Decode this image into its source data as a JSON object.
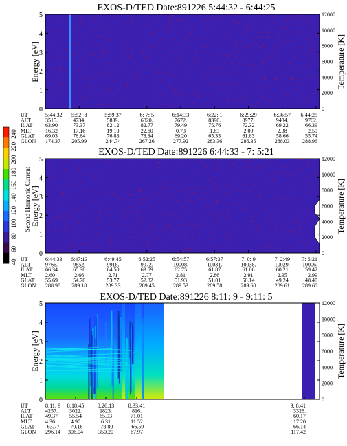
{
  "colors": {
    "background": "#3a1fb0",
    "noise": "#8a1a6a",
    "spike": "#3a8fff",
    "axis": "#000000"
  },
  "colorbar": {
    "label": "Second Harmonic Current",
    "ticks": [
      "40",
      "60",
      "80",
      "100",
      "120",
      "140",
      "160",
      "180",
      "200",
      "220",
      "240"
    ],
    "colors": [
      "#000000",
      "#3a0a4a",
      "#3b1a9a",
      "#2a3ad8",
      "#1a6aff",
      "#0aaaff",
      "#00e0e0",
      "#00e08a",
      "#40e000",
      "#c8e800",
      "#ffd000",
      "#ff7a00",
      "#ff1a00"
    ]
  },
  "chart_data": [
    {
      "type": "heatmap",
      "title": "EXOS-D/TED   Date:891226  5:44:32 - 6:44:25",
      "ylabel": "Energy [eV]",
      "y2label": "Temperature [K]",
      "ylim": [
        0,
        5
      ],
      "y2lim": [
        0,
        12000
      ],
      "yticks": [
        "0",
        "1",
        "2",
        "3",
        "4",
        "5"
      ],
      "y2ticks": [
        "0",
        "2000",
        "4000",
        "6000",
        "8000",
        "10000",
        "12000"
      ],
      "grid": false,
      "orbit_labels": [
        "UT",
        "ALT",
        "ILAT",
        "MLT",
        "GLAT",
        "GLON"
      ],
      "orbit_rows": [
        [
          "5:44:32",
          "5:52: 8",
          "5:59:37",
          "6: 7: 5",
          "6:14:33",
          "6:22: 1",
          "6:29:29",
          "6:36:57",
          "6:44:25"
        ],
        [
          "3515.",
          "4734.",
          "5839.",
          "6820.",
          "7672.",
          "8390.",
          "8977.",
          "9434.",
          "9762."
        ],
        [
          "63.90",
          "73.37",
          "82.12",
          "82.77",
          "79.49",
          "75.76",
          "72.32",
          "69.22",
          "66.39"
        ],
        [
          "16.32",
          "17.16",
          "19.10",
          "22.60",
          "0.73",
          "1.63",
          "2.09",
          "2.38",
          "2.59"
        ],
        [
          "69.03",
          "76.64",
          "76.88",
          "73.34",
          "69.20",
          "65.33",
          "61.83",
          "58.66",
          "55.74"
        ],
        [
          "174.37",
          "205.99",
          "244.74",
          "267.26",
          "277.92",
          "283.36",
          "286.35",
          "288.03",
          "288.96"
        ]
      ]
    },
    {
      "type": "heatmap",
      "title": "EXOS-D/TED   Date:891226  6:44:33 -  7: 5:21",
      "ylabel": "Energy [eV]",
      "y2label": "Temperature [K]",
      "ylim": [
        0,
        5
      ],
      "y2lim": [
        0,
        12000
      ],
      "yticks": [
        "0",
        "1",
        "2",
        "3",
        "4",
        "5"
      ],
      "y2ticks": [
        "0",
        "2000",
        "4000",
        "6000",
        "8000",
        "10000",
        "12000"
      ],
      "grid": false,
      "orbit_labels": [
        "UT",
        "ALT",
        "ILAT",
        "MLT",
        "GLAT",
        "GLON"
      ],
      "orbit_rows": [
        [
          "6:44:33",
          "6:47:13",
          "6:49:45",
          "6:52:25",
          "6:54:57",
          "6:57:37",
          "7: 0: 9",
          "7: 2:49",
          "7: 5:21"
        ],
        [
          "9766.",
          "9852.",
          "9918.",
          "9972.",
          "10008.",
          "10031.",
          "10038.",
          "10029.",
          "10006."
        ],
        [
          "66.34",
          "65.38",
          "64.50",
          "63.59",
          "62.75",
          "61.87",
          "61.06",
          "60.21",
          "59.42"
        ],
        [
          "2.60",
          "2.66",
          "2.71",
          "2.77",
          "2.81",
          "2.86",
          "2.91",
          "2.95",
          "2.99"
        ],
        [
          "55.69",
          "54.70",
          "53.77",
          "52.82",
          "51.93",
          "51.01",
          "50.14",
          "49.24",
          "48.40"
        ],
        [
          "288.98",
          "289.18",
          "289.33",
          "289.45",
          "289.53",
          "289.58",
          "289.60",
          "289.61",
          "289.60"
        ]
      ]
    },
    {
      "type": "heatmap",
      "title": "EXOS-D/TED   Date:891226  8:11: 9 -  9:11: 5",
      "ylabel": "Energy [eV]",
      "y2label": "Temperature [K]",
      "ylim": [
        0,
        5
      ],
      "y2lim": [
        0,
        12000
      ],
      "yticks": [
        "0",
        "1",
        "2",
        "3",
        "4",
        "5"
      ],
      "y2ticks": [
        "0",
        "2000",
        "4000",
        "6000",
        "8000",
        "10000",
        "12000"
      ],
      "grid": false,
      "orbit_labels": [
        "UT",
        "ALT",
        "ILAT",
        "MLT",
        "GLAT",
        "GLON"
      ],
      "orbit_rows": [
        [
          "8:11: 9",
          "8:18:45",
          "8:26:13",
          "8:33:41",
          "9: 8:41"
        ],
        [
          "4257.",
          "3022.",
          "1823.",
          "816.",
          "3328."
        ],
        [
          "49.37",
          "55.54",
          "65.93",
          "71.01",
          "60.17"
        ],
        [
          "4.36",
          "4.90",
          "6.31",
          "11.52",
          "17.20"
        ],
        [
          "-63.77",
          "-70.16",
          "-78.80",
          "-66.59",
          "66.14"
        ],
        [
          "296.14",
          "306.04",
          "350.20",
          "67.97",
          "117.42"
        ]
      ]
    }
  ]
}
